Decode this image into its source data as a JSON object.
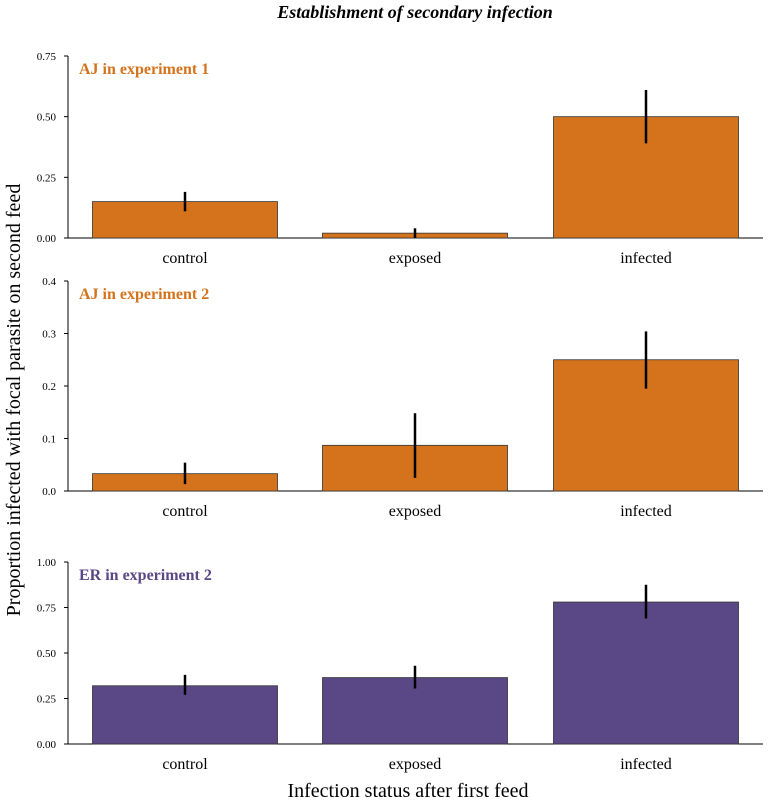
{
  "chart_data": {
    "type": "bar",
    "title": "Establishment of secondary infection",
    "xlabel": "Infection status after first feed",
    "ylabel": "Proportion infected with focal parasite on second feed",
    "categories": [
      "control",
      "exposed",
      "infected"
    ],
    "panels": [
      {
        "name": "AJ in experiment 1",
        "color": "#D4731C",
        "ylim": [
          0,
          0.75
        ],
        "yticks": [
          "0.00",
          "0.25",
          "0.50",
          "0.75"
        ],
        "values": [
          0.15,
          0.02,
          0.5
        ],
        "error_low": [
          0.11,
          0.0,
          0.39
        ],
        "error_high": [
          0.19,
          0.04,
          0.61
        ]
      },
      {
        "name": "AJ in experiment 2",
        "color": "#D4731C",
        "ylim": [
          0,
          0.4
        ],
        "yticks": [
          "0.0",
          "0.1",
          "0.2",
          "0.3",
          "0.4"
        ],
        "values": [
          0.033,
          0.087,
          0.25
        ],
        "error_low": [
          0.013,
          0.025,
          0.195
        ],
        "error_high": [
          0.054,
          0.148,
          0.304
        ]
      },
      {
        "name": "ER in experiment 2",
        "color": "#5A4785",
        "ylim": [
          0,
          1.0
        ],
        "yticks": [
          "0.00",
          "0.25",
          "0.50",
          "0.75",
          "1.00"
        ],
        "values": [
          0.32,
          0.365,
          0.78
        ],
        "error_low": [
          0.27,
          0.305,
          0.69
        ],
        "error_high": [
          0.38,
          0.43,
          0.875
        ]
      }
    ],
    "grid": false,
    "legend": "none"
  }
}
